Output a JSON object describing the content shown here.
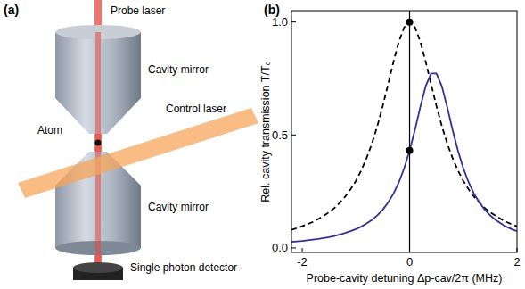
{
  "panel_a": {
    "letter": "(a)",
    "probe_label": "Probe laser",
    "upper_mirror_label": "Cavity mirror",
    "control_label": "Control laser",
    "atom_label": "Atom",
    "lower_mirror_label": "Cavity mirror",
    "detector_label": "Single photon detector"
  },
  "chart_data": {
    "type": "line",
    "panel_label": "(b)",
    "x_label": "Probe-cavity detuning Δp-cav/2π (MHz)",
    "y_label": "Rel. cavity transmission T/T₀",
    "xlim": [
      -2.2,
      2.0
    ],
    "ylim": [
      -0.02,
      1.05
    ],
    "xticks": [
      -2,
      0,
      2
    ],
    "yticks": [
      {
        "value": 0,
        "label": "0.0"
      },
      {
        "value": 0.5,
        "label": "0.5"
      },
      {
        "value": 1,
        "label": "1.0"
      }
    ],
    "reference_line_x": 0,
    "x": [
      -2.2,
      -2.1,
      -2.0,
      -1.9,
      -1.8,
      -1.7,
      -1.6,
      -1.5,
      -1.4,
      -1.3,
      -1.2,
      -1.1,
      -1.0,
      -0.9,
      -0.8,
      -0.7,
      -0.6,
      -0.5,
      -0.4,
      -0.3,
      -0.2,
      -0.1,
      0,
      0.1,
      0.2,
      0.3,
      0.4,
      0.5,
      0.6,
      0.7,
      0.8,
      0.9,
      1.0,
      1.1,
      1.2,
      1.3,
      1.4,
      1.5,
      1.6,
      1.7,
      1.8,
      1.9,
      2.0
    ],
    "series": [
      {
        "color": "#000000",
        "line_style": "dashed",
        "values": [
          0.08,
          0.087,
          0.096,
          0.105,
          0.115,
          0.128,
          0.142,
          0.158,
          0.177,
          0.2,
          0.227,
          0.259,
          0.297,
          0.343,
          0.398,
          0.463,
          0.54,
          0.628,
          0.725,
          0.824,
          0.913,
          0.977,
          1.0,
          0.977,
          0.913,
          0.824,
          0.725,
          0.628,
          0.54,
          0.463,
          0.398,
          0.343,
          0.297,
          0.259,
          0.227,
          0.2,
          0.177,
          0.158,
          0.142,
          0.128,
          0.115,
          0.105,
          0.096
        ]
      },
      {
        "color": "#2e3192",
        "line_style": "solid",
        "values": [
          0.027,
          0.029,
          0.031,
          0.034,
          0.037,
          0.04,
          0.044,
          0.048,
          0.053,
          0.059,
          0.066,
          0.074,
          0.083,
          0.094,
          0.108,
          0.124,
          0.144,
          0.169,
          0.201,
          0.24,
          0.29,
          0.353,
          0.431,
          0.523,
          0.624,
          0.716,
          0.772,
          0.772,
          0.716,
          0.624,
          0.523,
          0.431,
          0.353,
          0.29,
          0.24,
          0.201,
          0.169,
          0.144,
          0.124,
          0.108,
          0.094,
          0.083,
          0.074
        ]
      },
      {
        "type": "scatter",
        "marker": "circle",
        "color": "#000000",
        "x": [
          0,
          0
        ],
        "values": [
          1.0,
          0.431
        ]
      }
    ]
  }
}
